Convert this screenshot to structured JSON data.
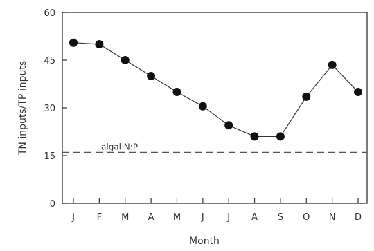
{
  "chart_data": {
    "type": "line",
    "title": "",
    "xlabel": "Month",
    "ylabel": "TN inputs/TP inputs",
    "categories": [
      "J",
      "F",
      "M",
      "A",
      "M",
      "J",
      "J",
      "A",
      "S",
      "O",
      "N",
      "D"
    ],
    "series": [
      {
        "values": [
          50.5,
          50,
          45,
          40,
          35,
          30.5,
          24.5,
          21,
          21,
          33.5,
          43.5,
          35
        ]
      }
    ],
    "ylim": [
      0,
      60
    ],
    "yticks": [
      "0",
      "15",
      "30",
      "45",
      "60"
    ],
    "reference_line": {
      "label": "algal N:P",
      "value": 16
    },
    "grid": false,
    "legend": "none",
    "colors": {
      "line": "#333333",
      "marker": "#111111",
      "axis": "#333333",
      "reference": "#555555"
    }
  }
}
